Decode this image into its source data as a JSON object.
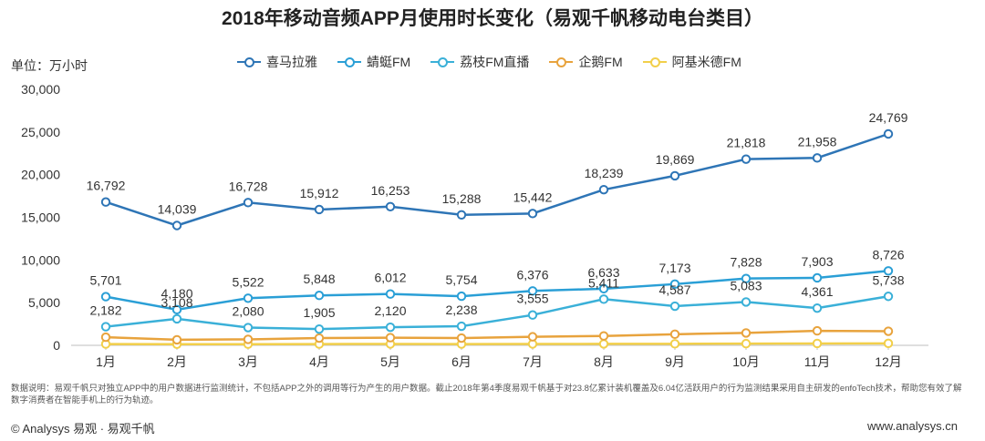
{
  "chart_data": {
    "type": "line",
    "title": "2018年移动音频APP月使用时长变化（易观千帆移动电台类目）",
    "ylabel": "单位：万小时",
    "categories": [
      "1月",
      "2月",
      "3月",
      "4月",
      "5月",
      "6月",
      "7月",
      "8月",
      "9月",
      "10月",
      "11月",
      "12月"
    ],
    "y_ticks": [
      "0",
      "5,000",
      "10,000",
      "15,000",
      "20,000",
      "25,000",
      "30,000"
    ],
    "ylim": [
      0,
      30000
    ],
    "grid": false,
    "legend_position": "top",
    "series": [
      {
        "name": "喜马拉雅",
        "color": "#2e75b6",
        "values": [
          16792,
          14039,
          16728,
          15912,
          16253,
          15288,
          15442,
          18239,
          19869,
          21818,
          21958,
          24769
        ],
        "labels": [
          "16,792",
          "14,039",
          "16,728",
          "15,912",
          "16,253",
          "15,288",
          "15,442",
          "18,239",
          "19,869",
          "21,818",
          "21,958",
          "24,769"
        ]
      },
      {
        "name": "蜻蜓FM",
        "color": "#2a9fd6",
        "values": [
          5701,
          4180,
          5522,
          5848,
          6012,
          5754,
          6376,
          6633,
          7173,
          7828,
          7903,
          8726
        ],
        "labels": [
          "5,701",
          "4,180",
          "5,522",
          "5,848",
          "6,012",
          "5,754",
          "6,376",
          "6,633",
          "7,173",
          "7,828",
          "7,903",
          "8,726"
        ]
      },
      {
        "name": "荔枝FM直播",
        "color": "#3ab0d8",
        "values": [
          2182,
          3108,
          2080,
          1905,
          2120,
          2238,
          3555,
          5411,
          4587,
          5083,
          4361,
          5738
        ],
        "labels": [
          "2,182",
          "3,108",
          "2,080",
          "1,905",
          "2,120",
          "2,238",
          "3,555",
          "5,411",
          "4,587",
          "5,083",
          "4,361",
          "5,738"
        ]
      },
      {
        "name": "企鹅FM",
        "color": "#e8a33d",
        "values": [
          950,
          650,
          700,
          850,
          900,
          850,
          1000,
          1100,
          1300,
          1450,
          1700,
          1650
        ]
      },
      {
        "name": "阿基米德FM",
        "color": "#f2cf4a",
        "values": [
          150,
          130,
          140,
          150,
          160,
          150,
          160,
          170,
          180,
          200,
          220,
          230
        ]
      }
    ]
  },
  "note": "数据说明：易观千帆只对独立APP中的用户数据进行监测统计，不包括APP之外的调用等行为产生的用户数据。截止2018年第4季度易观千帆基于对23.8亿累计装机覆盖及6.04亿活跃用户的行为监测结果采用自主研发的enfoTech技术，帮助您有效了解数字消费者在智能手机上的行为轨迹。",
  "footer": {
    "left": "© Analysys 易观 · 易观千帆",
    "right": "www.analysys.cn"
  }
}
